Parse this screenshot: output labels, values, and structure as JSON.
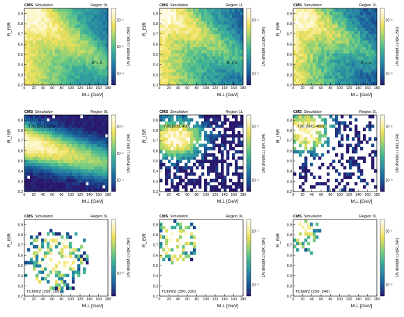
{
  "figure": {
    "colors": {
      "cmap": [
        "#2a186c",
        "#184a8f",
        "#1f6ea0",
        "#2c90a2",
        "#3aaf98",
        "#6dc984",
        "#b3d86a",
        "#f0e05c",
        "#fbf3b8",
        "#fffdf0"
      ],
      "empty": "#ffffff"
    }
  },
  "chart_data": [
    {
      "type": "heatmap",
      "panel": 0,
      "cms": "CMS",
      "sim": "Simulation",
      "region": "Region 0L",
      "sample": "tT + X",
      "sample_pos": "low-right",
      "xlabel": "M⊥ [GeV]",
      "ylabel": "R_ISR",
      "cbar_label": "1/N dN/d(M⊥) d(R_ISR)",
      "xticks": [
        "0",
        "20",
        "40",
        "60",
        "80",
        "100",
        "120",
        "140",
        "160",
        "180"
      ],
      "yticks": [
        "0.2",
        "0.3",
        "0.4",
        "0.5",
        "0.6",
        "0.7",
        "0.8",
        "0.9"
      ],
      "cbar_ticks": [
        "10⁻⁴",
        "10⁻³",
        "10⁻²"
      ],
      "xlim": [
        0,
        180
      ],
      "ylim": [
        0.2,
        0.95
      ],
      "log_z": true,
      "profile": {
        "kind": "anticorrelated",
        "slope": 0.55,
        "peak_y": 0.95,
        "x_scale": 90,
        "y_spread": 0.16,
        "fill": 0.97,
        "noise": 0.12,
        "seed": 11
      }
    },
    {
      "type": "heatmap",
      "panel": 1,
      "cms": "CMS",
      "sim": "Simulation",
      "region": "Region 1L",
      "sample": "tT + X",
      "sample_pos": "low-right",
      "xlabel": "M⊥ [GeV]",
      "ylabel": "R_ISR",
      "cbar_label": "1/N dN/d(M⊥) d(R_ISR)",
      "xticks": [
        "0",
        "20",
        "40",
        "60",
        "80",
        "100",
        "120",
        "140",
        "160",
        "180"
      ],
      "yticks": [
        "0.2",
        "0.3",
        "0.4",
        "0.5",
        "0.6",
        "0.7",
        "0.8",
        "0.9"
      ],
      "cbar_ticks": [
        "10⁻³",
        "10⁻²"
      ],
      "xlim": [
        0,
        180
      ],
      "ylim": [
        0.2,
        0.95
      ],
      "log_z": true,
      "profile": {
        "kind": "anticorrelated",
        "slope": 0.5,
        "peak_y": 0.95,
        "x_scale": 80,
        "y_spread": 0.15,
        "fill": 0.95,
        "noise": 0.15,
        "seed": 23
      }
    },
    {
      "type": "heatmap",
      "panel": 2,
      "cms": "CMS",
      "sim": "Simulation",
      "region": "Region 2L",
      "sample": "tT + X",
      "sample_pos": "low-right",
      "xlabel": "M⊥ [GeV]",
      "ylabel": "R_ISR",
      "cbar_label": "1/N dN/d(M⊥) d(R_ISR)",
      "xticks": [
        "0",
        "20",
        "40",
        "60",
        "80",
        "100",
        "120",
        "140",
        "160",
        "180"
      ],
      "yticks": [
        "0.2",
        "0.3",
        "0.4",
        "0.5",
        "0.6",
        "0.7",
        "0.8",
        "0.9"
      ],
      "cbar_ticks": [
        "10⁻³",
        "10⁻²"
      ],
      "xlim": [
        0,
        180
      ],
      "ylim": [
        0.2,
        0.95
      ],
      "log_z": true,
      "profile": {
        "kind": "anticorrelated",
        "slope": 0.45,
        "peak_y": 0.93,
        "x_scale": 70,
        "y_spread": 0.15,
        "fill": 0.92,
        "noise": 0.18,
        "seed": 37
      }
    },
    {
      "type": "heatmap",
      "panel": 3,
      "cms": "CMS",
      "sim": "Simulation",
      "region": "Region 0L",
      "sample": "T2tt (900, 820)",
      "sample_pos": "top-left",
      "xlabel": "M⊥ [GeV]",
      "ylabel": "R_ISR",
      "cbar_label": "1/N dN/d(M⊥) d(R_ISR)",
      "xticks": [
        "0",
        "20",
        "40",
        "60",
        "80",
        "100",
        "120",
        "140",
        "160",
        "180"
      ],
      "yticks": [
        "0.2",
        "0.3",
        "0.4",
        "0.5",
        "0.6",
        "0.7",
        "0.8",
        "0.9"
      ],
      "cbar_ticks": [
        "10⁻⁴",
        "10⁻³",
        "10⁻²"
      ],
      "xlim": [
        0,
        180
      ],
      "ylim": [
        0.2,
        0.95
      ],
      "log_z": true,
      "profile": {
        "kind": "band",
        "band_y": 0.6,
        "slope": 0.2,
        "x_scale": 150,
        "y_spread": 0.14,
        "fill": 0.98,
        "noise": 0.1,
        "seed": 41
      }
    },
    {
      "type": "heatmap",
      "panel": 4,
      "cms": "CMS",
      "sim": "Simulation",
      "region": "Region 1L",
      "sample": "T2tt (500, 400)",
      "sample_pos": "top-left",
      "xlabel": "M⊥ [GeV]",
      "ylabel": "R_ISR",
      "cbar_label": "1/N dN/d(M⊥) d(R_ISR)",
      "xticks": [
        "0",
        "20",
        "40",
        "60",
        "80",
        "100",
        "120",
        "140",
        "160",
        "180"
      ],
      "yticks": [
        "0.2",
        "0.3",
        "0.4",
        "0.5",
        "0.6",
        "0.7",
        "0.8",
        "0.9"
      ],
      "cbar_ticks": [
        "10⁻³",
        "10⁻²"
      ],
      "xlim": [
        0,
        180
      ],
      "ylim": [
        0.2,
        0.95
      ],
      "log_z": true,
      "profile": {
        "kind": "blob",
        "cx": 35,
        "cy": 0.72,
        "sx": 45,
        "sy": 0.14,
        "fill": 0.93,
        "noise": 0.2,
        "seed": 53
      }
    },
    {
      "type": "heatmap",
      "panel": 5,
      "cms": "CMS",
      "sim": "Simulation",
      "region": "Region 2L",
      "sample": "T2tt (500, 480)",
      "sample_pos": "top-left",
      "xlabel": "M⊥ [GeV]",
      "ylabel": "R_ISR",
      "cbar_label": "1/N dN/d(M⊥) d(R_ISR)",
      "xticks": [
        "0",
        "20",
        "40",
        "60",
        "80",
        "100",
        "120",
        "140",
        "160",
        "180"
      ],
      "yticks": [
        "0.2",
        "0.3",
        "0.4",
        "0.5",
        "0.6",
        "0.7",
        "0.8",
        "0.9"
      ],
      "cbar_ticks": [
        "10⁻³",
        "10⁻²"
      ],
      "xlim": [
        0,
        180
      ],
      "ylim": [
        0.2,
        0.95
      ],
      "log_z": true,
      "profile": {
        "kind": "blob",
        "cx": 25,
        "cy": 0.8,
        "sx": 40,
        "sy": 0.16,
        "fill": 0.75,
        "noise": 0.28,
        "seed": 67
      }
    },
    {
      "type": "heatmap",
      "panel": 6,
      "cms": "CMS",
      "sim": "Simulation",
      "region": "Region 3L",
      "sample": "TChiWZ (250, 160)",
      "sample_pos": "bottom-left",
      "xlabel": "M⊥ [GeV]",
      "ylabel": "R_ISR",
      "cbar_label": "1/N dN/d(M⊥) d(R_ISR)",
      "xticks": [
        "0",
        "20",
        "40",
        "60",
        "80",
        "100",
        "120",
        "140",
        "160",
        "180"
      ],
      "yticks": [
        "0.2",
        "0.3",
        "0.4",
        "0.5",
        "0.6",
        "0.7",
        "0.8",
        "0.9"
      ],
      "cbar_ticks": [
        "10⁻²"
      ],
      "xlim": [
        0,
        180
      ],
      "ylim": [
        0.2,
        0.95
      ],
      "log_z": true,
      "profile": {
        "kind": "sparse",
        "cx": 70,
        "cy": 0.55,
        "sx": 60,
        "sy": 0.25,
        "fill": 0.55,
        "noise": 0.55,
        "seed": 71
      }
    },
    {
      "type": "heatmap",
      "panel": 7,
      "cms": "CMS",
      "sim": "Simulation",
      "region": "Region 3L",
      "sample": "TChiWZ (250, 220)",
      "sample_pos": "bottom-left",
      "xlabel": "M⊥ [GeV]",
      "ylabel": "R_ISR",
      "cbar_label": "1/N dN/d(M⊥) d(R_ISR)",
      "xticks": [
        "0",
        "20",
        "40",
        "60",
        "80",
        "100",
        "120",
        "140",
        "160",
        "180"
      ],
      "yticks": [
        "0.2",
        "0.3",
        "0.4",
        "0.5",
        "0.6",
        "0.7",
        "0.8",
        "0.9"
      ],
      "cbar_ticks": [
        "10⁻²",
        "10⁻¹"
      ],
      "xlim": [
        0,
        180
      ],
      "ylim": [
        0.2,
        0.95
      ],
      "log_z": true,
      "profile": {
        "kind": "sparse",
        "cx": 35,
        "cy": 0.72,
        "sx": 45,
        "sy": 0.2,
        "fill": 0.5,
        "noise": 0.45,
        "seed": 83
      }
    },
    {
      "type": "heatmap",
      "panel": 8,
      "cms": "CMS",
      "sim": "Simulation",
      "region": "Region 3L",
      "sample": "TChiWZ (250, 240)",
      "sample_pos": "bottom-left",
      "xlabel": "M⊥ [GeV]",
      "ylabel": "R_ISR",
      "cbar_label": "1/N dN/d(M⊥) d(R_ISR)",
      "xticks": [
        "0",
        "20",
        "40",
        "60",
        "80",
        "100",
        "120",
        "140",
        "160",
        "180"
      ],
      "yticks": [
        "0.2",
        "0.3",
        "0.4",
        "0.5",
        "0.6",
        "0.7",
        "0.8",
        "0.9"
      ],
      "cbar_ticks": [
        "10⁻²",
        "10⁻¹"
      ],
      "xlim": [
        0,
        180
      ],
      "ylim": [
        0.2,
        0.95
      ],
      "log_z": true,
      "profile": {
        "kind": "sparse",
        "cx": 15,
        "cy": 0.85,
        "sx": 35,
        "sy": 0.18,
        "fill": 0.42,
        "noise": 0.35,
        "seed": 97
      }
    }
  ]
}
